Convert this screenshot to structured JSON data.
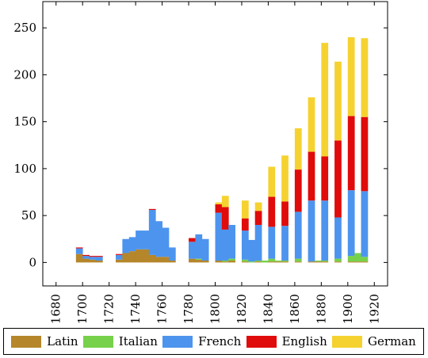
{
  "chart_data": {
    "type": "bar",
    "stacked": true,
    "x_bins_start": [
      1690,
      1695,
      1700,
      1705,
      1710,
      1715,
      1720,
      1725,
      1730,
      1735,
      1740,
      1745,
      1750,
      1755,
      1760,
      1765,
      1770,
      1775,
      1780,
      1785,
      1790,
      1795,
      1800,
      1805,
      1810,
      1815,
      1820,
      1825,
      1830,
      1835,
      1840,
      1845,
      1850,
      1855,
      1860,
      1865,
      1870,
      1875,
      1880,
      1885,
      1890,
      1895,
      1900,
      1905,
      1910,
      1915
    ],
    "bin_width": 5,
    "series": [
      {
        "name": "Latin",
        "color": "#b5862a",
        "values": [
          0,
          9,
          4,
          3,
          2,
          0,
          0,
          3,
          10,
          12,
          14,
          14,
          8,
          6,
          6,
          2,
          0,
          0,
          4,
          3,
          2,
          0,
          2,
          1,
          2,
          0,
          1,
          0,
          1,
          0,
          1,
          1,
          1,
          0,
          1,
          0,
          1,
          1,
          1,
          0,
          1,
          0,
          1,
          1,
          1,
          0
        ]
      },
      {
        "name": "Italian",
        "color": "#77d14a",
        "values": [
          0,
          0,
          0,
          0,
          0,
          0,
          0,
          0,
          0,
          0,
          0,
          0,
          0,
          0,
          0,
          0,
          0,
          0,
          0,
          1,
          0,
          0,
          0,
          1,
          2,
          0,
          2,
          1,
          1,
          2,
          3,
          1,
          1,
          0,
          3,
          0,
          0,
          1,
          1,
          0,
          3,
          0,
          6,
          9,
          5,
          0
        ]
      },
      {
        "name": "French",
        "color": "#4d94ee",
        "values": [
          0,
          6,
          3,
          3,
          4,
          0,
          0,
          5,
          15,
          15,
          20,
          20,
          48,
          38,
          31,
          14,
          0,
          0,
          18,
          26,
          23,
          0,
          51,
          33,
          36,
          0,
          31,
          23,
          38,
          0,
          34,
          0,
          37,
          0,
          50,
          0,
          65,
          0,
          64,
          0,
          44,
          0,
          70,
          0,
          70,
          0
        ]
      },
      {
        "name": "English",
        "color": "#e00b0b",
        "values": [
          0,
          1,
          1,
          1,
          1,
          0,
          0,
          1,
          0,
          0,
          0,
          0,
          1,
          0,
          0,
          0,
          0,
          0,
          4,
          0,
          0,
          0,
          9,
          24,
          0,
          0,
          13,
          0,
          15,
          0,
          32,
          0,
          26,
          0,
          45,
          0,
          52,
          0,
          47,
          0,
          82,
          0,
          79,
          0,
          79,
          0
        ]
      },
      {
        "name": "German",
        "color": "#f5d230",
        "values": [
          0,
          0,
          0,
          0,
          0,
          0,
          0,
          0,
          0,
          0,
          0,
          0,
          0,
          0,
          0,
          0,
          0,
          0,
          0,
          0,
          0,
          0,
          2,
          12,
          0,
          0,
          19,
          0,
          9,
          0,
          32,
          0,
          49,
          0,
          44,
          0,
          58,
          0,
          121,
          0,
          84,
          0,
          84,
          0,
          84,
          0
        ]
      }
    ],
    "xlim": [
      1670,
      1930
    ],
    "ylim": [
      -25,
      278
    ],
    "x_ticks": [
      1680,
      1700,
      1720,
      1740,
      1760,
      1780,
      1800,
      1820,
      1840,
      1860,
      1880,
      1900,
      1920
    ],
    "y_ticks": [
      0,
      50,
      100,
      150,
      200,
      250
    ],
    "title": "",
    "xlabel": "",
    "ylabel": "",
    "legend_position": "bottom"
  }
}
